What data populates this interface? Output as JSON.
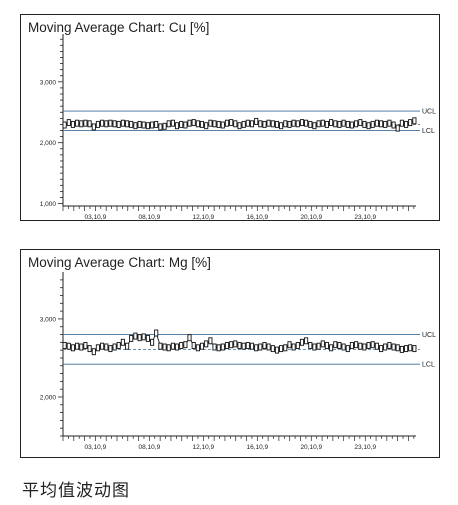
{
  "caption": "平均值波动图",
  "charts": [
    {
      "id": "cu",
      "chart_data": {
        "type": "line",
        "title": "Moving Average Chart: Cu [%]",
        "y_tick_labels": [
          "1,000",
          "2,000",
          "3,000"
        ],
        "y_ticks": [
          1.0,
          2.0,
          3.0
        ],
        "ylim": [
          0.96,
          3.72
        ],
        "x_tick_labels": [
          "03,10,9",
          "08,10,9",
          "12,10,9",
          "16,10,9",
          "20,10,9",
          "23,10,9"
        ],
        "x_ticks": [
          3,
          8,
          13,
          18,
          23,
          28
        ],
        "xlim": [
          0,
          32.7
        ],
        "control_limits": [
          {
            "label": "UCL",
            "value": 2.52,
            "style": "solid"
          },
          {
            "label": "LCL",
            "value": 2.2,
            "style": "solid"
          }
        ],
        "center_line": 2.3,
        "series": [
          {
            "values": [
              2.29,
              2.33,
              2.3,
              2.32,
              2.31,
              2.32,
              2.31,
              2.26,
              2.3,
              2.32,
              2.31,
              2.32,
              2.31,
              2.3,
              2.32,
              2.31,
              2.3,
              2.28,
              2.3,
              2.29,
              2.28,
              2.29,
              2.3,
              2.26,
              2.27,
              2.31,
              2.32,
              2.28,
              2.3,
              2.29,
              2.32,
              2.33,
              2.31,
              2.3,
              2.28,
              2.32,
              2.31,
              2.3,
              2.29,
              2.32,
              2.33,
              2.31,
              2.28,
              2.3,
              2.32,
              2.31,
              2.35,
              2.31,
              2.3,
              2.32,
              2.31,
              2.3,
              2.28,
              2.31,
              2.3,
              2.32,
              2.31,
              2.33,
              2.32,
              2.3,
              2.28,
              2.31,
              2.32,
              2.3,
              2.33,
              2.31,
              2.3,
              2.32,
              2.3,
              2.29,
              2.31,
              2.33,
              2.3,
              2.28,
              2.3,
              2.32,
              2.31,
              2.3,
              2.32,
              2.29,
              2.24,
              2.32,
              2.3,
              2.33,
              2.36
            ]
          }
        ]
      }
    },
    {
      "id": "mg",
      "chart_data": {
        "type": "line",
        "title": "Moving Average Chart: Mg [%]",
        "y_tick_labels": [
          "2,000",
          "3,000"
        ],
        "y_ticks": [
          2.0,
          3.0
        ],
        "ylim": [
          1.5,
          3.55
        ],
        "x_tick_labels": [
          "03,10,9",
          "08,10,9",
          "12,10,9",
          "16,10,9",
          "20,10,9",
          "23,10,9"
        ],
        "x_ticks": [
          3,
          8,
          13,
          18,
          23,
          28
        ],
        "xlim": [
          0,
          32.7
        ],
        "control_limits": [
          {
            "label": "UCL",
            "value": 2.8,
            "style": "solid"
          },
          {
            "label": "LCL",
            "value": 2.42,
            "style": "solid"
          }
        ],
        "center_line": 2.61,
        "series": [
          {
            "values": [
              2.66,
              2.65,
              2.63,
              2.65,
              2.64,
              2.66,
              2.62,
              2.58,
              2.63,
              2.65,
              2.64,
              2.62,
              2.64,
              2.66,
              2.7,
              2.65,
              2.75,
              2.78,
              2.76,
              2.77,
              2.75,
              2.7,
              2.82,
              2.65,
              2.64,
              2.63,
              2.65,
              2.64,
              2.66,
              2.67,
              2.76,
              2.66,
              2.63,
              2.65,
              2.68,
              2.72,
              2.64,
              2.63,
              2.64,
              2.66,
              2.67,
              2.68,
              2.66,
              2.65,
              2.66,
              2.65,
              2.63,
              2.64,
              2.66,
              2.64,
              2.62,
              2.6,
              2.62,
              2.63,
              2.67,
              2.64,
              2.66,
              2.7,
              2.72,
              2.66,
              2.64,
              2.65,
              2.68,
              2.66,
              2.63,
              2.67,
              2.66,
              2.64,
              2.62,
              2.66,
              2.67,
              2.65,
              2.64,
              2.66,
              2.67,
              2.65,
              2.62,
              2.64,
              2.66,
              2.64,
              2.63,
              2.61,
              2.62,
              2.63,
              2.62
            ]
          }
        ]
      }
    }
  ]
}
